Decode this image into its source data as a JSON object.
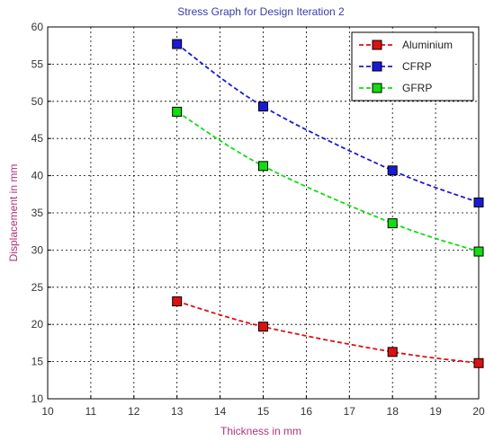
{
  "chart_data": {
    "type": "line",
    "title": "Stress Graph for Design Iteration 2",
    "xlabel": "Thickness in mm",
    "ylabel": "Displacement in mm",
    "xlim": [
      10,
      20
    ],
    "ylim": [
      10,
      60
    ],
    "xticks": [
      10,
      11,
      12,
      13,
      14,
      15,
      16,
      17,
      18,
      19,
      20
    ],
    "yticks": [
      10,
      15,
      20,
      25,
      30,
      35,
      40,
      45,
      50,
      55,
      60
    ],
    "grid": true,
    "legend_position": "top-right",
    "x": [
      13,
      15,
      18,
      20
    ],
    "series": [
      {
        "name": "Aluminium",
        "values": [
          23.1,
          19.7,
          16.3,
          14.8
        ],
        "color": "#dd1111"
      },
      {
        "name": "CFRP",
        "values": [
          57.7,
          49.3,
          40.7,
          36.4
        ],
        "color": "#1a1ad6"
      },
      {
        "name": "GFRP",
        "values": [
          48.6,
          41.3,
          33.6,
          29.8
        ],
        "color": "#11dd11"
      }
    ]
  }
}
